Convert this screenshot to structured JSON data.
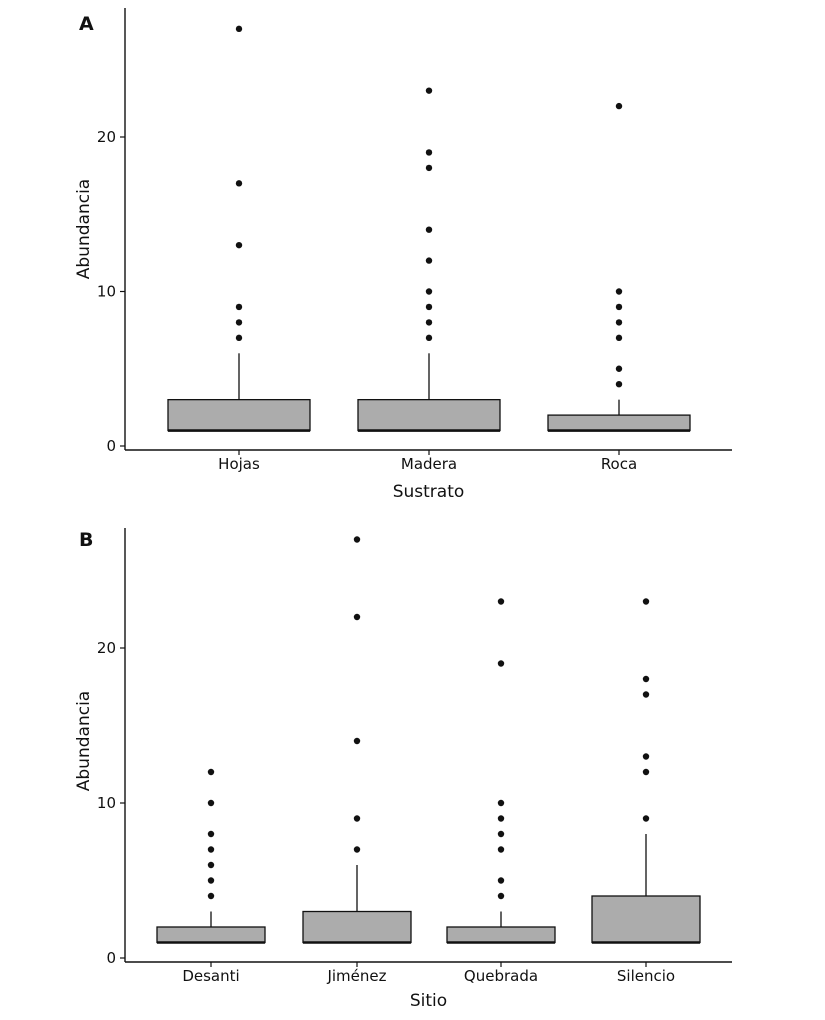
{
  "chart_data": [
    {
      "type": "boxplot",
      "panel_label": "A",
      "xlabel": "Sustrato",
      "ylabel": "Abundancia",
      "ylim": [
        0,
        28
      ],
      "yticks": [
        0,
        10,
        20
      ],
      "categories": [
        "Hojas",
        "Madera",
        "Roca"
      ],
      "boxes": [
        {
          "category": "Hojas",
          "q1": 1,
          "median": 1,
          "q3": 3,
          "whisker_low": 1,
          "whisker_high": 6,
          "outliers": [
            7,
            8,
            9,
            13,
            17,
            27
          ]
        },
        {
          "category": "Madera",
          "q1": 1,
          "median": 1,
          "q3": 3,
          "whisker_low": 1,
          "whisker_high": 6,
          "outliers": [
            7,
            8,
            9,
            10,
            12,
            14,
            18,
            19,
            23
          ]
        },
        {
          "category": "Roca",
          "q1": 1,
          "median": 1,
          "q3": 2,
          "whisker_low": 1,
          "whisker_high": 3,
          "outliers": [
            4,
            5,
            7,
            8,
            9,
            10,
            22
          ]
        }
      ]
    },
    {
      "type": "boxplot",
      "panel_label": "B",
      "xlabel": "Sitio",
      "ylabel": "Abundancia",
      "ylim": [
        0,
        28
      ],
      "yticks": [
        0,
        10,
        20
      ],
      "categories": [
        "Desanti",
        "Jiménez",
        "Quebrada",
        "Silencio"
      ],
      "boxes": [
        {
          "category": "Desanti",
          "q1": 1,
          "median": 1,
          "q3": 2,
          "whisker_low": 1,
          "whisker_high": 3,
          "outliers": [
            4,
            5,
            6,
            7,
            8,
            10,
            12
          ]
        },
        {
          "category": "Jiménez",
          "q1": 1,
          "median": 1,
          "q3": 3,
          "whisker_low": 1,
          "whisker_high": 6,
          "outliers": [
            7,
            9,
            14,
            22,
            27
          ]
        },
        {
          "category": "Quebrada",
          "q1": 1,
          "median": 1,
          "q3": 2,
          "whisker_low": 1,
          "whisker_high": 3,
          "outliers": [
            4,
            5,
            7,
            8,
            9,
            10,
            19,
            23
          ]
        },
        {
          "category": "Silencio",
          "q1": 1,
          "median": 1,
          "q3": 4,
          "whisker_low": 1,
          "whisker_high": 8,
          "outliers": [
            9,
            12,
            13,
            17,
            18,
            23
          ]
        }
      ]
    }
  ]
}
